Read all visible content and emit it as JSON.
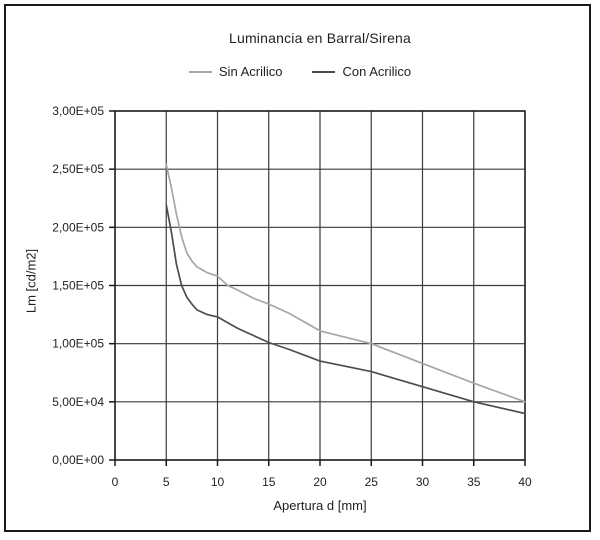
{
  "title": "Luminancia en Barral/Sirena",
  "legend": [
    {
      "label": "Sin Acrilico",
      "color": "#a6a6a6"
    },
    {
      "label": "Con Acrilico",
      "color": "#4d4d4d"
    }
  ],
  "axes": {
    "x": {
      "title": "Apertura d [mm]",
      "tick_values": [
        0,
        5,
        10,
        15,
        20,
        25,
        30,
        35,
        40
      ],
      "tick_labels": [
        "0",
        "5",
        "10",
        "15",
        "20",
        "25",
        "30",
        "35",
        "40"
      ]
    },
    "y": {
      "title": "Lm [cd/m2]",
      "tick_values": [
        0,
        50000,
        100000,
        150000,
        200000,
        250000,
        300000
      ],
      "tick_labels": [
        "0,00E+00",
        "5,00E+04",
        "1,00E+05",
        "1,50E+05",
        "2,00E+05",
        "2,50E+05",
        "3,00E+05"
      ]
    }
  },
  "colors": {
    "background": "#ffffff",
    "frame": "#1a1a1a",
    "grid": "#3a3a3a",
    "axis": "#1a1a1a",
    "text": "#1f1f1f"
  },
  "chart_data": {
    "type": "line",
    "title": "Luminancia en Barral/Sirena",
    "xlabel": "Apertura d [mm]",
    "ylabel": "Lm [cd/m2]",
    "xlim": [
      0,
      40
    ],
    "ylim": [
      0,
      300000
    ],
    "grid": true,
    "legend_position": "top",
    "series": [
      {
        "name": "Sin Acrilico",
        "color": "#a6a6a6",
        "points": [
          [
            5,
            254000
          ],
          [
            5.2,
            246000
          ],
          [
            5.5,
            234000
          ],
          [
            6,
            211000
          ],
          [
            6.5,
            192000
          ],
          [
            7,
            178000
          ],
          [
            7.5,
            171000
          ],
          [
            8,
            166000
          ],
          [
            9,
            161000
          ],
          [
            10,
            158000
          ],
          [
            11,
            150000
          ],
          [
            12,
            146000
          ],
          [
            13.5,
            139000
          ],
          [
            15,
            134000
          ],
          [
            17,
            126000
          ],
          [
            20,
            111000
          ],
          [
            25,
            100000
          ],
          [
            30,
            83000
          ],
          [
            35,
            66000
          ],
          [
            40,
            50000
          ]
        ]
      },
      {
        "name": "Con Acrilico",
        "color": "#4d4d4d",
        "points": [
          [
            5,
            219000
          ],
          [
            5.2,
            210000
          ],
          [
            5.5,
            196000
          ],
          [
            6,
            168000
          ],
          [
            6.5,
            150000
          ],
          [
            7,
            140000
          ],
          [
            7.5,
            134000
          ],
          [
            8,
            129000
          ],
          [
            9,
            125000
          ],
          [
            10,
            123000
          ],
          [
            11,
            118000
          ],
          [
            12,
            113000
          ],
          [
            13.5,
            107000
          ],
          [
            15,
            101000
          ],
          [
            17,
            95000
          ],
          [
            20,
            85000
          ],
          [
            25,
            76000
          ],
          [
            30,
            63000
          ],
          [
            35,
            50000
          ],
          [
            40,
            40000
          ]
        ]
      }
    ]
  }
}
